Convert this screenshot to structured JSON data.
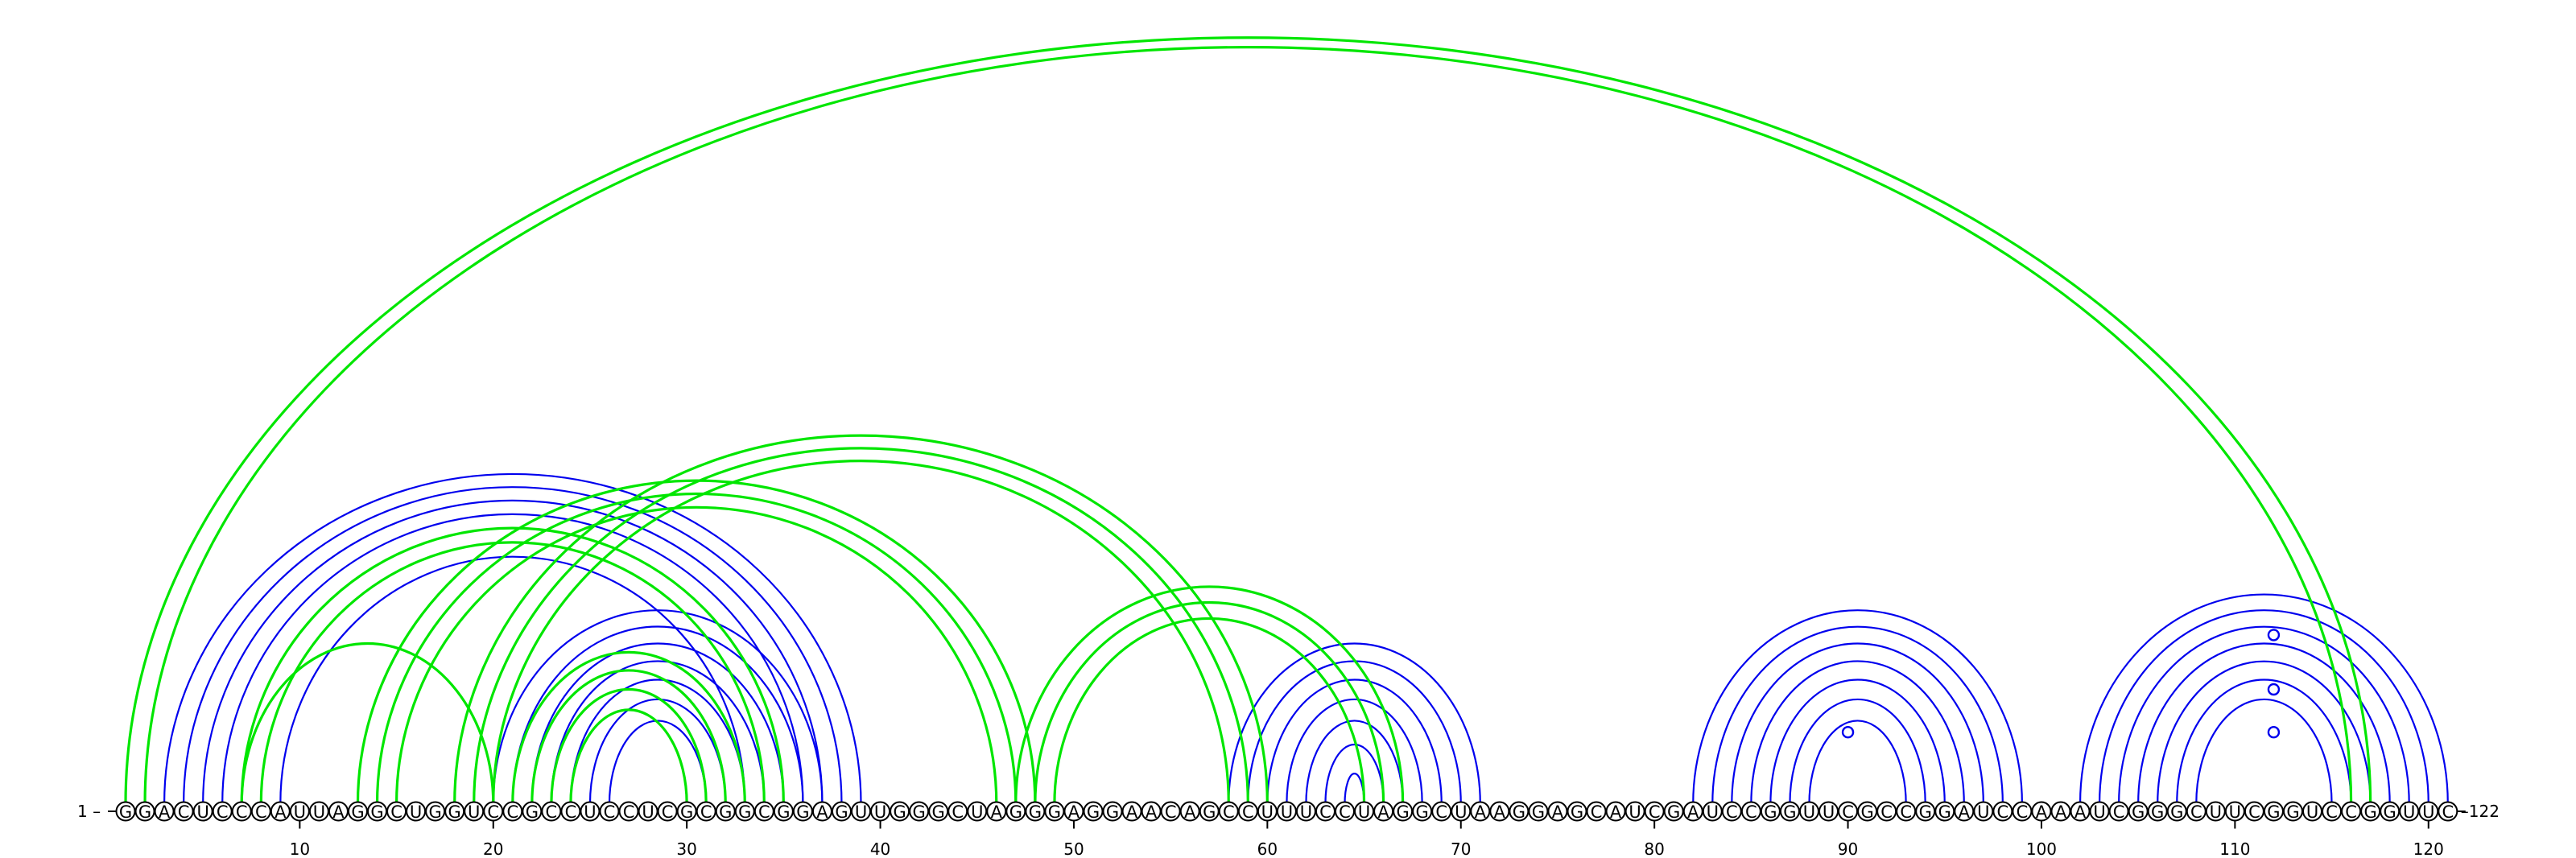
{
  "sequence": "GGACUCCCAUUAGGCUGGUCCGCCUCCUCGCGGCGGAGUUGGGCUAGGGAGGAACAGCCUUUCCUAGGCUAAGGAGCAUCGAUCCGGUUCGCCGGAUCCAAAUCGGGCUUCGGUCCGGUUC",
  "start_label": "1 –",
  "end_label": "–122",
  "ticks": [
    "10",
    "20",
    "30",
    "40",
    "50",
    "60",
    "70",
    "80",
    "90",
    "100",
    "110",
    "120"
  ],
  "colors": {
    "blue": "#0000ee",
    "green": "#00e600",
    "green_light": "#7fff7f"
  },
  "structures": [
    {
      "color_key": "blue",
      "helices": [
        {
          "i": 3,
          "j": 39,
          "n": 7
        },
        {
          "i": 20,
          "j": 37,
          "n": 7
        },
        {
          "i": 58,
          "j": 71,
          "n": 7
        },
        {
          "i": 82,
          "j": 99,
          "n": 7
        },
        {
          "i": 102,
          "j": 121,
          "n": 7
        }
      ],
      "gu_pairs": [
        [
          88,
          92
        ],
        [
          110,
          114
        ],
        [
          108,
          116
        ],
        [
          105,
          119
        ]
      ]
    },
    {
      "color_key": "green",
      "helices": [
        {
          "i": 1,
          "j": 117,
          "n": 2
        },
        {
          "i": 7,
          "j": 35,
          "n": 2
        },
        {
          "i": 7,
          "j": 20,
          "n": 1
        },
        {
          "i": 13,
          "j": 48,
          "n": 3
        },
        {
          "i": 18,
          "j": 60,
          "n": 3
        },
        {
          "i": 21,
          "j": 33,
          "n": 4
        },
        {
          "i": 47,
          "j": 67,
          "n": 3
        }
      ],
      "gu_pairs": []
    }
  ]
}
